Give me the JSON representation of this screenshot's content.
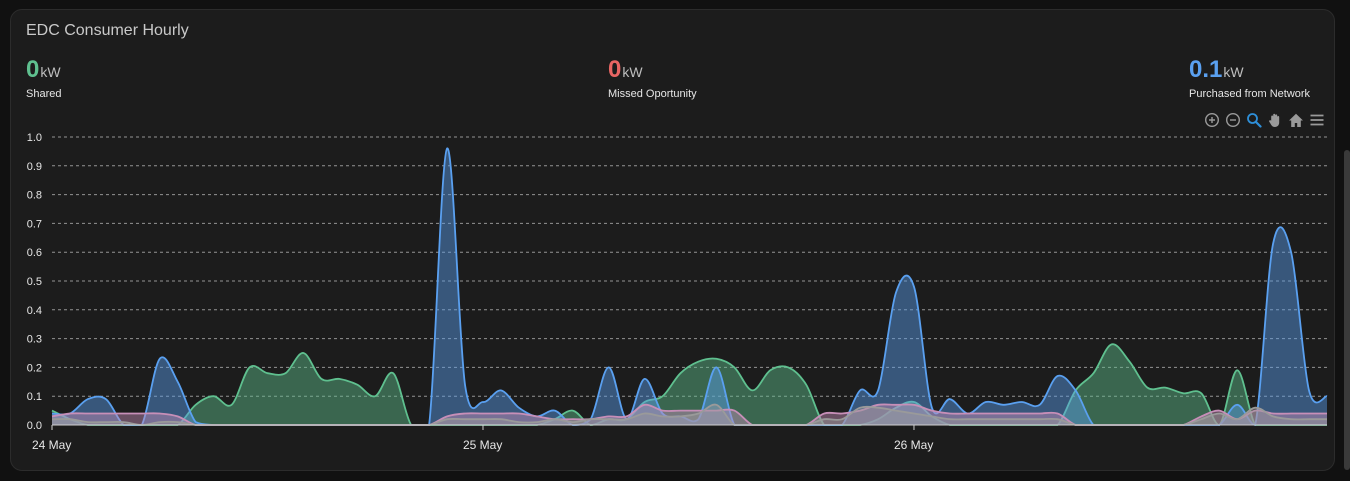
{
  "card": {
    "title": "EDC Consumer Hourly"
  },
  "stats": [
    {
      "value": "0",
      "unit": "kW",
      "label": "Shared",
      "color": "#5fc08f"
    },
    {
      "value": "0",
      "unit": "kW",
      "label": "Missed Oportunity",
      "color": "#e86563"
    },
    {
      "value": "0.1",
      "unit": "kW",
      "label": "Purchased from Network",
      "color": "#5aa0f0"
    }
  ],
  "toolbar": {
    "icons": [
      "zoom-in-icon",
      "zoom-out-icon",
      "selection-zoom-icon",
      "pan-hand-icon",
      "home-reset-icon",
      "menu-icon"
    ]
  },
  "colors": {
    "background": "#1c1c1c",
    "grid": "#bbbbbb",
    "text": "#e6e6e6",
    "blue": "#5aa0f0",
    "green": "#5fc08f",
    "pink": "#c78fb8",
    "gray": "#9a9a9a"
  },
  "chart_data": {
    "type": "area",
    "x_unit": "hours from 24 May 00:00",
    "xlim": [
      0,
      71
    ],
    "ylim": [
      0,
      1.0
    ],
    "yticks": [
      0.0,
      0.1,
      0.2,
      0.3,
      0.4,
      0.5,
      0.6,
      0.7,
      0.8,
      0.9,
      1.0
    ],
    "ytick_labels": [
      "0.0",
      "0.1",
      "0.2",
      "0.3",
      "0.4",
      "0.5",
      "0.6",
      "0.7",
      "0.8",
      "0.9",
      "1.0"
    ],
    "xticks": [
      {
        "x": 0,
        "label": "24 May"
      },
      {
        "x": 24,
        "label": "25 May"
      },
      {
        "x": 48,
        "label": "26 May"
      }
    ],
    "grid": true,
    "legend": "none",
    "series": [
      {
        "color": "#5fc08f",
        "values": [
          0.05,
          0.02,
          0.0,
          0.0,
          0.0,
          0.0,
          0.0,
          0.0,
          0.07,
          0.1,
          0.07,
          0.2,
          0.18,
          0.18,
          0.25,
          0.16,
          0.16,
          0.14,
          0.1,
          0.18,
          0.0,
          0.0,
          0.0,
          0.0,
          0.0,
          0.0,
          0.0,
          0.0,
          0.02,
          0.05,
          0.0,
          0.02,
          0.02,
          0.08,
          0.1,
          0.18,
          0.22,
          0.23,
          0.2,
          0.12,
          0.19,
          0.2,
          0.14,
          0.0,
          0.0,
          0.0,
          0.02,
          0.06,
          0.08,
          0.03,
          0.0,
          0.0,
          0.0,
          0.0,
          0.0,
          0.0,
          0.0,
          0.12,
          0.18,
          0.28,
          0.22,
          0.13,
          0.13,
          0.11,
          0.11,
          0.0,
          0.19,
          0.0,
          0.0,
          0.0,
          0.0,
          0.0
        ]
      },
      {
        "color": "#5aa0f0",
        "values": [
          0.04,
          0.04,
          0.09,
          0.09,
          0.0,
          0.0,
          0.23,
          0.15,
          0.01,
          0.0,
          0.0,
          0.0,
          0.0,
          0.0,
          0.0,
          0.0,
          0.0,
          0.0,
          0.0,
          0.0,
          0.0,
          0.0,
          0.96,
          0.14,
          0.08,
          0.12,
          0.06,
          0.03,
          0.05,
          0.0,
          0.02,
          0.2,
          0.02,
          0.16,
          0.04,
          0.03,
          0.02,
          0.2,
          0.0,
          0.0,
          0.0,
          0.0,
          0.0,
          0.0,
          0.0,
          0.12,
          0.12,
          0.46,
          0.48,
          0.06,
          0.09,
          0.04,
          0.08,
          0.07,
          0.08,
          0.07,
          0.17,
          0.12,
          0.0,
          0.0,
          0.0,
          0.0,
          0.0,
          0.0,
          0.0,
          0.0,
          0.07,
          0.0,
          0.63,
          0.6,
          0.12,
          0.1
        ]
      },
      {
        "color": "#c78fb8",
        "values": [
          0.03,
          0.04,
          0.04,
          0.04,
          0.04,
          0.04,
          0.04,
          0.03,
          0.0,
          0.0,
          0.0,
          0.0,
          0.0,
          0.0,
          0.0,
          0.0,
          0.0,
          0.0,
          0.0,
          0.0,
          0.0,
          0.0,
          0.03,
          0.04,
          0.04,
          0.04,
          0.04,
          0.03,
          0.02,
          0.02,
          0.02,
          0.03,
          0.03,
          0.07,
          0.05,
          0.05,
          0.05,
          0.05,
          0.05,
          0.0,
          0.0,
          0.0,
          0.0,
          0.04,
          0.04,
          0.05,
          0.07,
          0.07,
          0.07,
          0.05,
          0.04,
          0.04,
          0.04,
          0.04,
          0.04,
          0.04,
          0.04,
          0.0,
          0.0,
          0.0,
          0.0,
          0.0,
          0.0,
          0.0,
          0.03,
          0.05,
          0.02,
          0.05,
          0.04,
          0.04,
          0.04,
          0.04
        ]
      },
      {
        "color": "#9a9a9a",
        "values": [
          0.02,
          0.02,
          0.01,
          0.01,
          0.01,
          0.0,
          0.01,
          0.01,
          0.0,
          0.0,
          0.0,
          0.0,
          0.0,
          0.0,
          0.0,
          0.0,
          0.0,
          0.0,
          0.0,
          0.0,
          0.0,
          0.0,
          0.02,
          0.02,
          0.02,
          0.02,
          0.01,
          0.01,
          0.02,
          0.01,
          0.02,
          0.02,
          0.02,
          0.04,
          0.03,
          0.03,
          0.04,
          0.07,
          0.0,
          0.0,
          0.0,
          0.0,
          0.0,
          0.02,
          0.02,
          0.06,
          0.06,
          0.05,
          0.04,
          0.03,
          0.02,
          0.02,
          0.02,
          0.02,
          0.02,
          0.02,
          0.02,
          0.0,
          0.0,
          0.0,
          0.0,
          0.0,
          0.0,
          0.0,
          0.02,
          0.04,
          0.02,
          0.06,
          0.03,
          0.02,
          0.02,
          0.02
        ]
      }
    ]
  }
}
